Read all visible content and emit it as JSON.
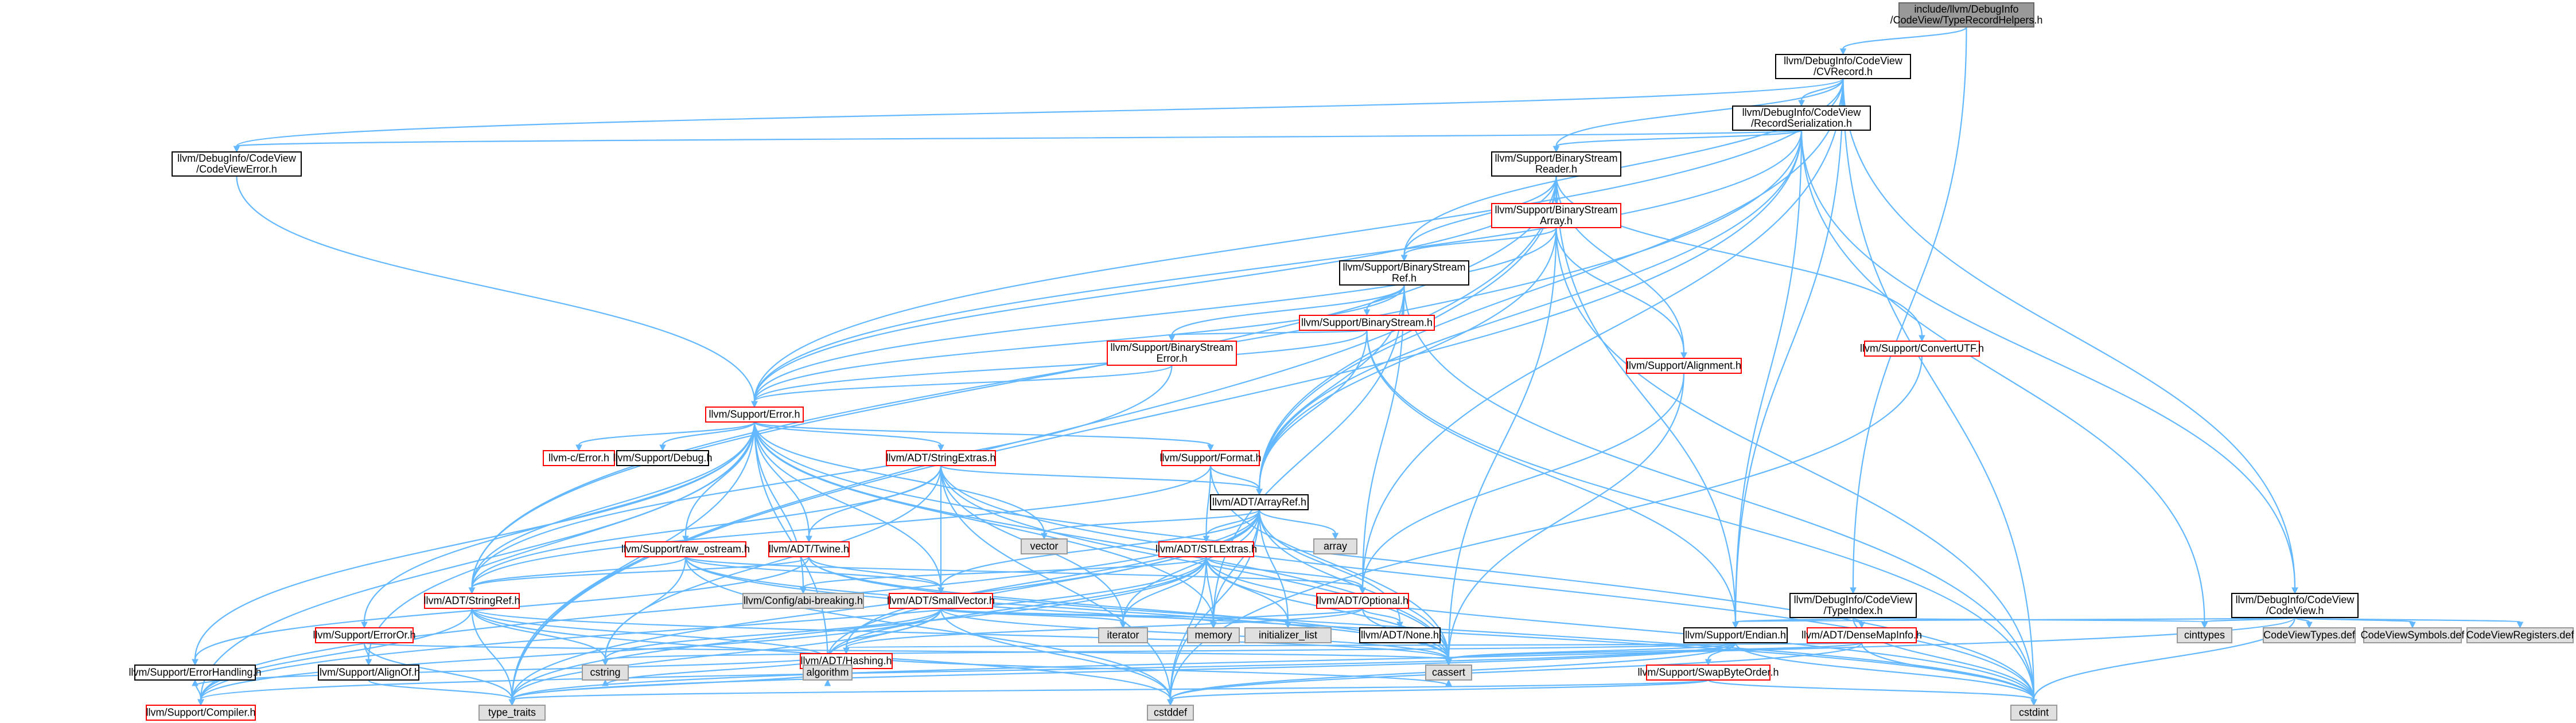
{
  "title": "include/llvm/DebugInfo/CodeView/TypeRecordHelpers.h",
  "colors": {
    "edge": "#63b8ff",
    "root_fill": "#999999",
    "project_border": "#000000",
    "truncated_border": "#ff0000",
    "system_fill": "#e0e0e0",
    "system_border": "#999999"
  },
  "nodes": [
    {
      "id": "root",
      "lines": [
        "include/llvm/DebugInfo",
        "/CodeView/TypeRecordHelpers.h"
      ],
      "kind": "root"
    },
    {
      "id": "cvrecord",
      "lines": [
        "llvm/DebugInfo/CodeView",
        "/CVRecord.h"
      ],
      "kind": "project"
    },
    {
      "id": "recser",
      "lines": [
        "llvm/DebugInfo/CodeView",
        "/RecordSerialization.h"
      ],
      "kind": "project"
    },
    {
      "id": "cverror",
      "lines": [
        "llvm/DebugInfo/CodeView",
        "/CodeViewError.h"
      ],
      "kind": "project"
    },
    {
      "id": "bsreader",
      "lines": [
        "llvm/Support/BinaryStream",
        "Reader.h"
      ],
      "kind": "project"
    },
    {
      "id": "bsarray",
      "lines": [
        "llvm/Support/BinaryStream",
        "Array.h"
      ],
      "kind": "truncated"
    },
    {
      "id": "bsref",
      "lines": [
        "llvm/Support/BinaryStream",
        "Ref.h"
      ],
      "kind": "project"
    },
    {
      "id": "bstream",
      "lines": [
        "llvm/Support/BinaryStream.h"
      ],
      "kind": "truncated"
    },
    {
      "id": "bserror",
      "lines": [
        "llvm/Support/BinaryStream",
        "Error.h"
      ],
      "kind": "truncated"
    },
    {
      "id": "convutf",
      "lines": [
        "llvm/Support/ConvertUTF.h"
      ],
      "kind": "truncated"
    },
    {
      "id": "alignment",
      "lines": [
        "llvm/Support/Alignment.h"
      ],
      "kind": "truncated"
    },
    {
      "id": "error",
      "lines": [
        "llvm/Support/Error.h"
      ],
      "kind": "truncated"
    },
    {
      "id": "cerror",
      "lines": [
        "llvm-c/Error.h"
      ],
      "kind": "truncated"
    },
    {
      "id": "debug",
      "lines": [
        "llvm/Support/Debug.h"
      ],
      "kind": "project"
    },
    {
      "id": "strextras",
      "lines": [
        "llvm/ADT/StringExtras.h"
      ],
      "kind": "truncated"
    },
    {
      "id": "format",
      "lines": [
        "llvm/Support/Format.h"
      ],
      "kind": "truncated"
    },
    {
      "id": "arrayref",
      "lines": [
        "llvm/ADT/ArrayRef.h"
      ],
      "kind": "project"
    },
    {
      "id": "vector",
      "lines": [
        "vector"
      ],
      "kind": "system"
    },
    {
      "id": "array",
      "lines": [
        "array"
      ],
      "kind": "system"
    },
    {
      "id": "rawostream",
      "lines": [
        "llvm/Support/raw_ostream.h"
      ],
      "kind": "truncated"
    },
    {
      "id": "twine",
      "lines": [
        "llvm/ADT/Twine.h"
      ],
      "kind": "truncated"
    },
    {
      "id": "stlextras",
      "lines": [
        "llvm/ADT/STLExtras.h"
      ],
      "kind": "truncated"
    },
    {
      "id": "stringref",
      "lines": [
        "llvm/ADT/StringRef.h"
      ],
      "kind": "truncated"
    },
    {
      "id": "cfgbreak",
      "lines": [
        "llvm/Config/abi-breaking.h"
      ],
      "kind": "system"
    },
    {
      "id": "smallvec",
      "lines": [
        "llvm/ADT/SmallVector.h"
      ],
      "kind": "truncated"
    },
    {
      "id": "optional",
      "lines": [
        "llvm/ADT/Optional.h"
      ],
      "kind": "truncated"
    },
    {
      "id": "typeindex",
      "lines": [
        "llvm/DebugInfo/CodeView",
        "/TypeIndex.h"
      ],
      "kind": "project"
    },
    {
      "id": "codeview",
      "lines": [
        "llvm/DebugInfo/CodeView",
        "/CodeView.h"
      ],
      "kind": "project"
    },
    {
      "id": "iterator",
      "lines": [
        "iterator"
      ],
      "kind": "system"
    },
    {
      "id": "memory",
      "lines": [
        "memory"
      ],
      "kind": "system"
    },
    {
      "id": "initlist",
      "lines": [
        "initializer_list"
      ],
      "kind": "system"
    },
    {
      "id": "none",
      "lines": [
        "llvm/ADT/None.h"
      ],
      "kind": "project"
    },
    {
      "id": "endian",
      "lines": [
        "llvm/Support/Endian.h"
      ],
      "kind": "project"
    },
    {
      "id": "densemapinfo",
      "lines": [
        "llvm/ADT/DenseMapInfo.h"
      ],
      "kind": "truncated"
    },
    {
      "id": "cinttypes",
      "lines": [
        "cinttypes"
      ],
      "kind": "system"
    },
    {
      "id": "cvtypes",
      "lines": [
        "CodeViewTypes.def"
      ],
      "kind": "system"
    },
    {
      "id": "cvsymbols",
      "lines": [
        "CodeViewSymbols.def"
      ],
      "kind": "system"
    },
    {
      "id": "cvregs",
      "lines": [
        "CodeViewRegisters.def"
      ],
      "kind": "system"
    },
    {
      "id": "erroror",
      "lines": [
        "llvm/Support/ErrorOr.h"
      ],
      "kind": "truncated"
    },
    {
      "id": "hashing",
      "lines": [
        "llvm/ADT/Hashing.h"
      ],
      "kind": "truncated"
    },
    {
      "id": "errhandling",
      "lines": [
        "llvm/Support/ErrorHandling.h"
      ],
      "kind": "project"
    },
    {
      "id": "alignof",
      "lines": [
        "llvm/Support/AlignOf.h"
      ],
      "kind": "project"
    },
    {
      "id": "cstring",
      "lines": [
        "cstring"
      ],
      "kind": "system"
    },
    {
      "id": "algorithm",
      "lines": [
        "algorithm"
      ],
      "kind": "system"
    },
    {
      "id": "cassert",
      "lines": [
        "cassert"
      ],
      "kind": "system"
    },
    {
      "id": "swapbyte",
      "lines": [
        "llvm/Support/SwapByteOrder.h"
      ],
      "kind": "truncated"
    },
    {
      "id": "compiler",
      "lines": [
        "llvm/Support/Compiler.h"
      ],
      "kind": "truncated"
    },
    {
      "id": "typetraits",
      "lines": [
        "type_traits"
      ],
      "kind": "system"
    },
    {
      "id": "cstddef",
      "lines": [
        "cstddef"
      ],
      "kind": "system"
    },
    {
      "id": "cstdint",
      "lines": [
        "cstdint"
      ],
      "kind": "system"
    }
  ],
  "edges": [
    [
      "root",
      "cvrecord"
    ],
    [
      "root",
      "typeindex"
    ],
    [
      "cvrecord",
      "recser"
    ],
    [
      "cvrecord",
      "cverror"
    ],
    [
      "cvrecord",
      "bsreader"
    ],
    [
      "cvrecord",
      "bsref"
    ],
    [
      "cvrecord",
      "error"
    ],
    [
      "cvrecord",
      "arrayref"
    ],
    [
      "cvrecord",
      "optional"
    ],
    [
      "cvrecord",
      "codeview"
    ],
    [
      "cvrecord",
      "endian"
    ],
    [
      "cvrecord",
      "cstdint"
    ],
    [
      "recser",
      "cverror"
    ],
    [
      "recser",
      "bsreader"
    ],
    [
      "recser",
      "codeview"
    ],
    [
      "recser",
      "stringref"
    ],
    [
      "recser",
      "arrayref"
    ],
    [
      "recser",
      "endian"
    ],
    [
      "recser",
      "error"
    ],
    [
      "recser",
      "cinttypes"
    ],
    [
      "recser",
      "typetraits"
    ],
    [
      "cverror",
      "error"
    ],
    [
      "bsreader",
      "bsarray"
    ],
    [
      "bsreader",
      "bsref"
    ],
    [
      "bsreader",
      "convutf"
    ],
    [
      "bsreader",
      "alignment"
    ],
    [
      "bsreader",
      "error"
    ],
    [
      "bsreader",
      "arrayref"
    ],
    [
      "bsreader",
      "stringref"
    ],
    [
      "bsreader",
      "endian"
    ],
    [
      "bsreader",
      "typetraits"
    ],
    [
      "bsarray",
      "bsref"
    ],
    [
      "bsarray",
      "alignment"
    ],
    [
      "bsarray",
      "arrayref"
    ],
    [
      "bsarray",
      "error"
    ],
    [
      "bsarray",
      "cassert"
    ],
    [
      "bsarray",
      "cstdint"
    ],
    [
      "bsref",
      "bstream"
    ],
    [
      "bsref",
      "bserror"
    ],
    [
      "bsref",
      "arrayref"
    ],
    [
      "bsref",
      "optional"
    ],
    [
      "bsref",
      "error"
    ],
    [
      "bsref",
      "memory"
    ],
    [
      "bsref",
      "cstdint"
    ],
    [
      "bstream",
      "bserror"
    ],
    [
      "bstream",
      "arrayref"
    ],
    [
      "bstream",
      "endian"
    ],
    [
      "bstream",
      "error"
    ],
    [
      "bstream",
      "cstdint"
    ],
    [
      "bserror",
      "error"
    ],
    [
      "bserror",
      "stringref"
    ],
    [
      "convutf",
      "cstddef"
    ],
    [
      "alignment",
      "optional"
    ],
    [
      "alignment",
      "cassert"
    ],
    [
      "error",
      "cerror"
    ],
    [
      "error",
      "debug"
    ],
    [
      "error",
      "strextras"
    ],
    [
      "error",
      "format"
    ],
    [
      "error",
      "twine"
    ],
    [
      "error",
      "stringref"
    ],
    [
      "error",
      "smallvec"
    ],
    [
      "error",
      "rawostream"
    ],
    [
      "error",
      "erroror"
    ],
    [
      "error",
      "errhandling"
    ],
    [
      "error",
      "alignof"
    ],
    [
      "error",
      "compiler"
    ],
    [
      "error",
      "cfgbreak"
    ],
    [
      "error",
      "algorithm"
    ],
    [
      "error",
      "cassert"
    ],
    [
      "error",
      "cstdint"
    ],
    [
      "error",
      "cstdlib"
    ],
    [
      "error",
      "memory"
    ],
    [
      "error",
      "vector"
    ],
    [
      "error",
      "typetraits"
    ],
    [
      "strextras",
      "arrayref"
    ],
    [
      "strextras",
      "smallvec"
    ],
    [
      "strextras",
      "stringref"
    ],
    [
      "strextras",
      "twine"
    ],
    [
      "strextras",
      "iterator"
    ],
    [
      "strextras",
      "cassert"
    ],
    [
      "strextras",
      "cstddef"
    ],
    [
      "strextras",
      "cstdint"
    ],
    [
      "strextras",
      "cstring"
    ],
    [
      "format",
      "arrayref"
    ],
    [
      "format",
      "stlextras"
    ],
    [
      "format",
      "stringref"
    ],
    [
      "format",
      "cassert"
    ],
    [
      "arrayref",
      "hashing"
    ],
    [
      "arrayref",
      "none"
    ],
    [
      "arrayref",
      "smallvec"
    ],
    [
      "arrayref",
      "stlextras"
    ],
    [
      "arrayref",
      "compiler"
    ],
    [
      "arrayref",
      "algorithm"
    ],
    [
      "arrayref",
      "array"
    ],
    [
      "arrayref",
      "cassert"
    ],
    [
      "arrayref",
      "cstddef"
    ],
    [
      "arrayref",
      "initlist"
    ],
    [
      "arrayref",
      "iterator"
    ],
    [
      "arrayref",
      "memory"
    ],
    [
      "arrayref",
      "typetraits"
    ],
    [
      "arrayref",
      "vector"
    ],
    [
      "rawostream",
      "stringref"
    ],
    [
      "rawostream",
      "smallvec"
    ],
    [
      "rawostream",
      "optional"
    ],
    [
      "rawostream",
      "cassert"
    ],
    [
      "rawostream",
      "cstddef"
    ],
    [
      "rawostream",
      "cstdint"
    ],
    [
      "rawostream",
      "cstring"
    ],
    [
      "twine",
      "smallvec"
    ],
    [
      "twine",
      "stringref"
    ],
    [
      "twine",
      "errhandling"
    ],
    [
      "twine",
      "cassert"
    ],
    [
      "twine",
      "cstdint"
    ],
    [
      "stlextras",
      "optional"
    ],
    [
      "stlextras",
      "cfgbreak"
    ],
    [
      "stlextras",
      "compiler"
    ],
    [
      "stlextras",
      "algorithm"
    ],
    [
      "stlextras",
      "cassert"
    ],
    [
      "stlextras",
      "cstddef"
    ],
    [
      "stlextras",
      "cstdint"
    ],
    [
      "stlextras",
      "initlist"
    ],
    [
      "stlextras",
      "iterator"
    ],
    [
      "stlextras",
      "memory"
    ],
    [
      "stlextras",
      "typetraits"
    ],
    [
      "stringref",
      "compiler"
    ],
    [
      "stringref",
      "algorithm"
    ],
    [
      "stringref",
      "cassert"
    ],
    [
      "stringref",
      "cstddef"
    ],
    [
      "stringref",
      "cstring"
    ],
    [
      "stringref",
      "typetraits"
    ],
    [
      "smallvec",
      "compiler"
    ],
    [
      "smallvec",
      "algorithm"
    ],
    [
      "smallvec",
      "cassert"
    ],
    [
      "smallvec",
      "cstddef"
    ],
    [
      "smallvec",
      "cstring"
    ],
    [
      "smallvec",
      "initlist"
    ],
    [
      "smallvec",
      "iterator"
    ],
    [
      "smallvec",
      "memory"
    ],
    [
      "smallvec",
      "typetraits"
    ],
    [
      "optional",
      "none"
    ],
    [
      "optional",
      "hashing"
    ],
    [
      "optional",
      "cassert"
    ],
    [
      "optional",
      "memory"
    ],
    [
      "typeindex",
      "endian"
    ],
    [
      "typeindex",
      "densemapinfo"
    ],
    [
      "typeindex",
      "cinttypes"
    ],
    [
      "typeindex",
      "cstdint"
    ],
    [
      "codeview",
      "endian"
    ],
    [
      "codeview",
      "cvtypes"
    ],
    [
      "codeview",
      "cvsymbols"
    ],
    [
      "codeview",
      "cvregs"
    ],
    [
      "codeview",
      "cinttypes"
    ],
    [
      "codeview",
      "typetraits"
    ],
    [
      "codeview",
      "cstdint"
    ],
    [
      "endian",
      "swapbyte"
    ],
    [
      "endian",
      "compiler"
    ],
    [
      "endian",
      "cassert"
    ],
    [
      "endian",
      "cstddef"
    ],
    [
      "endian",
      "cstdint"
    ],
    [
      "endian",
      "cstring"
    ],
    [
      "endian",
      "typetraits"
    ],
    [
      "densemapinfo",
      "hashing"
    ],
    [
      "densemapinfo",
      "cassert"
    ],
    [
      "densemapinfo",
      "cstddef"
    ],
    [
      "densemapinfo",
      "cstdint"
    ],
    [
      "erroror",
      "alignof"
    ],
    [
      "erroror",
      "cassert"
    ],
    [
      "erroror",
      "typetraits"
    ],
    [
      "hashing",
      "errhandling"
    ],
    [
      "hashing",
      "algorithm"
    ],
    [
      "hashing",
      "cassert"
    ],
    [
      "hashing",
      "cstring"
    ],
    [
      "hashing",
      "typetraits"
    ],
    [
      "errhandling",
      "compiler"
    ],
    [
      "alignof",
      "typetraits"
    ],
    [
      "swapbyte",
      "cstddef"
    ],
    [
      "swapbyte",
      "cstdint"
    ],
    [
      "swapbyte",
      "typetraits"
    ]
  ]
}
